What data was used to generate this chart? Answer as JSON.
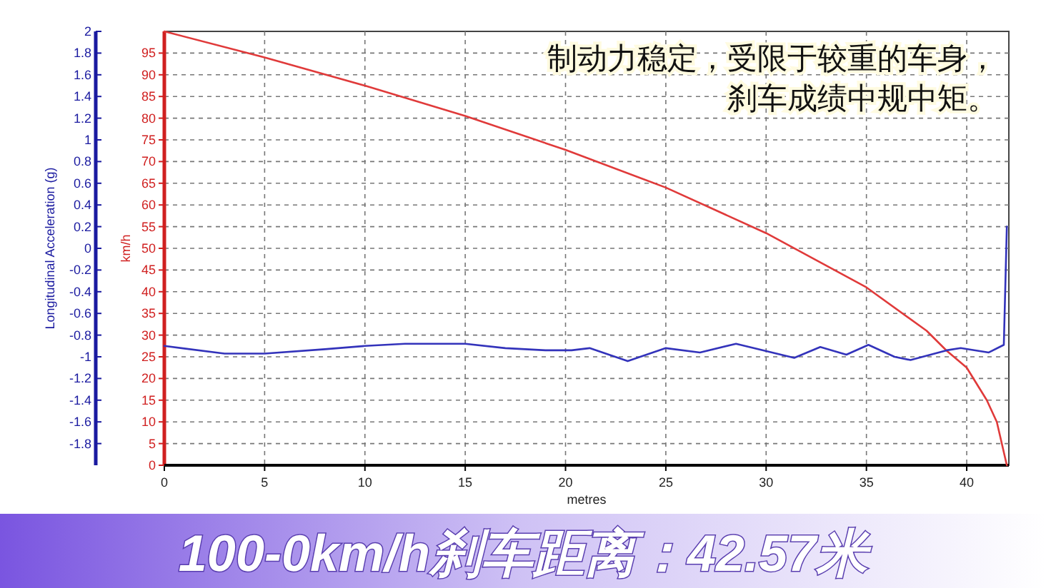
{
  "chart_data": {
    "type": "line",
    "xlabel": "metres",
    "ylabel": "km/h",
    "y2label": "Longitudinal Acceleration (g)",
    "xlim": [
      0,
      42.1
    ],
    "xticks": [
      0,
      5,
      10,
      15,
      20,
      25,
      30,
      35,
      40
    ],
    "ylim": [
      0,
      100
    ],
    "yticks": [
      0,
      5,
      10,
      15,
      20,
      25,
      30,
      35,
      40,
      45,
      50,
      55,
      60,
      65,
      70,
      75,
      80,
      85,
      90,
      95
    ],
    "y2lim": [
      -2,
      2
    ],
    "y2ticks": [
      -1.8,
      -1.6,
      -1.4,
      -1.2,
      -1,
      -0.8,
      -0.6,
      -0.4,
      -0.2,
      0,
      0.2,
      0.4,
      0.6,
      0.8,
      1,
      1.2,
      1.4,
      1.6,
      1.8,
      2
    ],
    "grid": true,
    "line_style": "solid",
    "marker": "none",
    "series": [
      {
        "color": "#e03a3a",
        "x": [
          0,
          5,
          10,
          15,
          20,
          25,
          30,
          35,
          38,
          39,
          40,
          41,
          41.5,
          42
        ],
        "values": [
          100,
          94,
          87.5,
          80.5,
          72.7,
          64,
          53.5,
          41,
          31,
          26.4,
          22.5,
          15,
          10,
          0
        ]
      },
      {
        "color": "#3333bb",
        "axis": "y2",
        "x": [
          0,
          3,
          5,
          8,
          10,
          12,
          15,
          17,
          19,
          20.3,
          21.2,
          23.1,
          25,
          26.7,
          28.5,
          31.4,
          32.7,
          34,
          35.1,
          36.4,
          37.2,
          39,
          39.7,
          41.1,
          41.85,
          42
        ],
        "values": [
          -0.9,
          -0.97,
          -0.97,
          -0.93,
          -0.9,
          -0.88,
          -0.88,
          -0.92,
          -0.94,
          -0.94,
          -0.92,
          -1.04,
          -0.92,
          -0.96,
          -0.88,
          -1.01,
          -0.91,
          -0.98,
          -0.89,
          -1,
          -1.03,
          -0.94,
          -0.92,
          -0.96,
          -0.89,
          0.2
        ]
      }
    ],
    "annotations": [
      "制动力稳定，受限于较重的车身，",
      "刹车成绩中规中矩。",
      "100-0km/h刹车距离：42.57米"
    ]
  }
}
